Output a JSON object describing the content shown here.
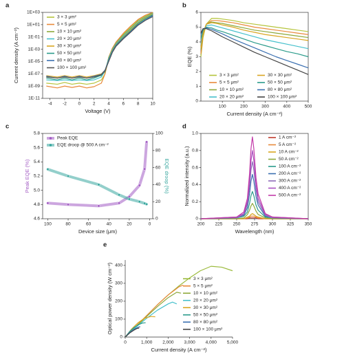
{
  "chart_data": [
    {
      "type": "line",
      "panel_label": "a",
      "xlabel": "Voltage (V)",
      "ylabel": "Current density (A cm⁻²)",
      "yscale": "log",
      "frame": true,
      "legend": "upper left",
      "x": [
        -4.5,
        -3,
        -2,
        -1,
        0,
        1,
        2,
        3,
        3.5,
        4,
        4.5,
        5,
        6,
        7,
        8,
        9,
        10
      ],
      "xlim": [
        -5,
        10
      ],
      "xticks": [
        -4,
        -2,
        0,
        2,
        4,
        6,
        8,
        10
      ],
      "ylim": [
        1e-11,
        1000
      ],
      "yticks": [
        {
          "value": 1e-11,
          "label": "1E-11"
        },
        {
          "value": 1e-09,
          "label": "1E-09"
        },
        {
          "value": 1e-07,
          "label": "1E-07"
        },
        {
          "value": 1e-05,
          "label": "1E-05"
        },
        {
          "value": 0.001,
          "label": "1E-03"
        },
        {
          "value": 0.1,
          "label": "1E-01"
        },
        {
          "value": 10,
          "label": "1E+01"
        },
        {
          "value": 1000,
          "label": "1E+03"
        }
      ],
      "series": [
        {
          "name": "3 × 3 μm²",
          "color": "#b5c43a",
          "values": [
            3e-09,
            2e-09,
            4e-09,
            2e-09,
            3e-09,
            2e-09,
            3e-09,
            1e-08,
            1e-07,
            3e-05,
            0.001,
            0.01,
            0.3,
            5,
            60,
            300,
            1000
          ]
        },
        {
          "name": "5 × 5 μm²",
          "color": "#e8893a",
          "values": [
            1e-09,
            5e-10,
            1e-09,
            6e-10,
            1e-09,
            5e-10,
            8e-10,
            3e-09,
            1e-07,
            5e-05,
            0.0015,
            0.015,
            0.4,
            6,
            70,
            350,
            1000
          ]
        },
        {
          "name": "10 × 10 μm²",
          "color": "#8da83a",
          "values": [
            3e-08,
            2e-08,
            3e-08,
            2e-08,
            3e-08,
            2e-08,
            3e-08,
            5e-08,
            2e-07,
            4e-05,
            0.001,
            0.01,
            0.2,
            3,
            40,
            200,
            800
          ]
        },
        {
          "name": "20 × 20 μm²",
          "color": "#45c0cc",
          "values": [
            1e-08,
            8e-09,
            1e-08,
            8e-09,
            1e-08,
            8e-09,
            1e-08,
            3e-08,
            3e-07,
            3e-05,
            0.0008,
            0.008,
            0.15,
            2,
            25,
            150,
            600
          ]
        },
        {
          "name": "30 × 30 μm²",
          "color": "#d9a520",
          "values": [
            5e-08,
            3e-08,
            5e-08,
            3e-08,
            5e-08,
            3e-08,
            5e-08,
            1e-07,
            4e-07,
            2e-05,
            0.0006,
            0.006,
            0.1,
            1.5,
            20,
            120,
            500
          ]
        },
        {
          "name": "50 × 50 μm²",
          "color": "#2a9b8a",
          "values": [
            2e-08,
            1e-08,
            2e-08,
            1e-08,
            2e-08,
            1e-08,
            2e-08,
            6e-08,
            3e-07,
            2e-05,
            0.0005,
            0.005,
            0.08,
            1,
            15,
            90,
            400
          ]
        },
        {
          "name": "80 × 80 μm²",
          "color": "#3a6fb0",
          "values": [
            4e-08,
            2e-08,
            4e-08,
            2e-08,
            4e-08,
            2e-08,
            4e-08,
            8e-08,
            4e-07,
            1.5e-05,
            0.0004,
            0.004,
            0.06,
            0.8,
            10,
            60,
            300
          ]
        },
        {
          "name": "100 × 100 μm²",
          "color": "#555555",
          "values": [
            3e-08,
            2e-08,
            3e-08,
            2e-08,
            3e-08,
            2e-08,
            3e-08,
            7e-08,
            3e-07,
            1e-05,
            0.0003,
            0.003,
            0.05,
            0.6,
            8,
            50,
            200
          ]
        }
      ]
    },
    {
      "type": "line",
      "panel_label": "b",
      "xlabel": "Current density (A cm⁻²)",
      "ylabel": "EQE (%)",
      "frame": true,
      "legend": "lower center",
      "x": [
        0,
        10,
        25,
        50,
        75,
        100,
        150,
        200,
        250,
        300,
        350,
        400,
        450,
        500
      ],
      "xlim": [
        0,
        500
      ],
      "xticks": [
        100,
        200,
        300,
        400,
        500
      ],
      "ylim": [
        0,
        6
      ],
      "yticks": [
        0,
        1,
        2,
        3,
        4,
        5,
        6
      ],
      "series": [
        {
          "name": "3 × 3 μm²",
          "color": "#b5c43a",
          "values": [
            3.0,
            4.3,
            5.2,
            5.6,
            5.6,
            5.55,
            5.45,
            5.3,
            5.2,
            5.1,
            5.0,
            4.9,
            4.8,
            4.7
          ]
        },
        {
          "name": "5 × 5 μm²",
          "color": "#e8893a",
          "values": [
            3.2,
            4.5,
            5.2,
            5.45,
            5.45,
            5.4,
            5.3,
            5.15,
            5.0,
            4.9,
            4.8,
            4.7,
            4.6,
            4.5
          ]
        },
        {
          "name": "10 × 10 μm²",
          "color": "#8da83a",
          "values": [
            3.5,
            4.6,
            5.2,
            5.35,
            5.3,
            5.25,
            5.1,
            4.95,
            4.8,
            4.7,
            4.6,
            4.5,
            4.4,
            4.3
          ]
        },
        {
          "name": "20 × 20 μm²",
          "color": "#45c0cc",
          "values": [
            3.8,
            4.7,
            5.1,
            5.15,
            5.05,
            4.95,
            4.75,
            4.55,
            4.35,
            4.15,
            4.0,
            3.85,
            3.7,
            3.55
          ]
        },
        {
          "name": "30 × 30 μm²",
          "color": "#d9a520",
          "values": [
            3.6,
            4.6,
            5.2,
            5.3,
            5.25,
            5.15,
            5.0,
            4.8,
            4.65,
            4.5,
            4.4,
            4.3,
            4.2,
            4.1
          ]
        },
        {
          "name": "50 × 50 μm²",
          "color": "#2a9b8a",
          "values": [
            4.2,
            4.8,
            5.0,
            4.95,
            4.8,
            4.7,
            4.45,
            4.2,
            3.95,
            3.75,
            3.55,
            3.35,
            3.2,
            3.0
          ]
        },
        {
          "name": "80 × 80 μm²",
          "color": "#3a6fb0",
          "values": [
            4.5,
            4.9,
            4.95,
            4.85,
            4.7,
            4.55,
            4.2,
            3.9,
            3.6,
            3.3,
            3.0,
            2.75,
            2.5,
            2.25
          ]
        },
        {
          "name": "100 × 100 μm²",
          "color": "#444444",
          "values": [
            4.6,
            4.9,
            4.9,
            4.75,
            4.55,
            4.35,
            4.0,
            3.65,
            3.3,
            3.0,
            2.7,
            2.4,
            2.1,
            1.8
          ]
        }
      ]
    },
    {
      "type": "line",
      "panel_label": "c",
      "xlabel": "Device size (μm)",
      "ylabel": "Peak EQE (%)",
      "y2label": "EQE droop (%)",
      "frame": true,
      "markers": true,
      "legend": "upper left",
      "x": [
        100,
        80,
        50,
        30,
        20,
        10,
        5,
        3
      ],
      "xlim": [
        105,
        -3
      ],
      "xticks": [
        100,
        80,
        60,
        40,
        20,
        0
      ],
      "ylim": [
        4.6,
        5.8
      ],
      "yticks": [
        4.6,
        4.8,
        {
          "value": 5,
          "label": "5.0"
        },
        5.2,
        5.4,
        5.6,
        5.8
      ],
      "y2lim": [
        0,
        100
      ],
      "y2ticks": [
        0,
        20,
        40,
        60,
        80,
        100
      ],
      "series": [
        {
          "name": "Peak EQE",
          "color": "#a35dc4",
          "values": [
            4.82,
            4.8,
            4.78,
            4.82,
            4.91,
            5.07,
            5.3,
            5.68
          ]
        },
        {
          "name": "EQE droop @ 500 A cm⁻²",
          "color": "#3aa8a0",
          "axis": "y2",
          "values": [
            58,
            50,
            40,
            28,
            23,
            20,
            18,
            17
          ]
        }
      ]
    },
    {
      "type": "line",
      "panel_label": "d",
      "xlabel": "Wavelength (nm)",
      "ylabel": "Normalized intensity (a.u.)",
      "frame": true,
      "legend": "upper right",
      "x": [
        200,
        250,
        260,
        265,
        268,
        270,
        272,
        274,
        277,
        280,
        290,
        300,
        350
      ],
      "xlim": [
        200,
        350
      ],
      "xticks": [
        200,
        225,
        250,
        275,
        300,
        325,
        350
      ],
      "ylim": [
        0,
        1
      ],
      "yticks": [
        0,
        0.2,
        0.4,
        0.6,
        0.8,
        {
          "value": 1,
          "label": "1.0"
        }
      ],
      "series": [
        {
          "name": "1 A cm⁻²",
          "color": "#c0392b",
          "values": [
            0,
            0,
            0,
            0,
            0.01,
            0.01,
            0.01,
            0.01,
            0.01,
            0,
            0,
            0,
            0
          ]
        },
        {
          "name": "5 A cm⁻²",
          "color": "#e8893a",
          "values": [
            0,
            0,
            0,
            0.01,
            0.02,
            0.03,
            0.03,
            0.03,
            0.02,
            0.01,
            0,
            0,
            0
          ]
        },
        {
          "name": "10 A cm⁻²",
          "color": "#d9a520",
          "values": [
            0,
            0,
            0,
            0.02,
            0.03,
            0.05,
            0.06,
            0.05,
            0.03,
            0.02,
            0,
            0,
            0
          ]
        },
        {
          "name": "50 A cm⁻²",
          "color": "#8da83a",
          "values": [
            0,
            0,
            0.01,
            0.05,
            0.1,
            0.15,
            0.18,
            0.15,
            0.09,
            0.05,
            0.01,
            0,
            0
          ]
        },
        {
          "name": "100 A cm⁻²",
          "color": "#2a9b8a",
          "values": [
            0,
            0.01,
            0.03,
            0.08,
            0.18,
            0.27,
            0.32,
            0.27,
            0.16,
            0.1,
            0.02,
            0.01,
            0
          ]
        },
        {
          "name": "200 A cm⁻²",
          "color": "#3a6fb0",
          "values": [
            0,
            0.01,
            0.04,
            0.13,
            0.29,
            0.44,
            0.52,
            0.44,
            0.26,
            0.16,
            0.03,
            0.01,
            0
          ]
        },
        {
          "name": "300 A cm⁻²",
          "color": "#8e6bb8",
          "values": [
            0,
            0.01,
            0.05,
            0.17,
            0.37,
            0.57,
            0.67,
            0.57,
            0.34,
            0.2,
            0.04,
            0.01,
            0
          ]
        },
        {
          "name": "400 A cm⁻²",
          "color": "#a84fc0",
          "values": [
            0,
            0.02,
            0.06,
            0.2,
            0.44,
            0.68,
            0.8,
            0.68,
            0.4,
            0.24,
            0.05,
            0.02,
            0
          ]
        },
        {
          "name": "500 A cm⁻²",
          "color": "#c23aa8",
          "values": [
            0,
            0.02,
            0.08,
            0.24,
            0.53,
            0.82,
            0.96,
            0.82,
            0.48,
            0.29,
            0.06,
            0.02,
            0
          ]
        }
      ]
    },
    {
      "type": "line",
      "panel_label": "e",
      "xlabel": "Current density (A cm⁻²)",
      "ylabel": "Optical power density (W cm⁻²)",
      "frame": false,
      "legend": "center right",
      "xlim": [
        0,
        5000
      ],
      "xticks": [
        0,
        {
          "value": 1000,
          "label": "1,000"
        },
        {
          "value": 2000,
          "label": "2,000"
        },
        {
          "value": 3000,
          "label": "3,000"
        },
        {
          "value": 4000,
          "label": "4,000"
        },
        {
          "value": 5000,
          "label": "5,000"
        }
      ],
      "ylim": [
        0,
        430
      ],
      "yticks": [
        0,
        100,
        200,
        300,
        400
      ],
      "series": [
        {
          "name": "3 × 3 μm²",
          "color": "#9bba3c",
          "x": [
            0,
            500,
            1000,
            1500,
            2000,
            2500,
            3000,
            3500,
            4000,
            4500,
            5000
          ],
          "values": [
            0,
            60,
            120,
            180,
            235,
            285,
            330,
            370,
            395,
            390,
            370
          ]
        },
        {
          "name": "5 × 5 μm²",
          "color": "#e8893a",
          "x": [
            0,
            500,
            1000,
            1500,
            2000,
            2500,
            2700
          ],
          "values": [
            0,
            60,
            120,
            180,
            235,
            280,
            290
          ]
        },
        {
          "name": "10 × 10 μm²",
          "color": "#8da83a",
          "x": [
            0,
            500,
            1000,
            1500,
            2000,
            2400,
            2600
          ],
          "values": [
            0,
            58,
            115,
            170,
            220,
            250,
            245
          ]
        },
        {
          "name": "20 × 20 μm²",
          "color": "#45c0cc",
          "x": [
            0,
            500,
            1000,
            1500,
            2000,
            2200,
            2400
          ],
          "values": [
            0,
            55,
            105,
            150,
            185,
            195,
            185
          ]
        },
        {
          "name": "30 × 30 μm²",
          "color": "#d9a520",
          "x": [
            0,
            300,
            600,
            900,
            1200,
            1400
          ],
          "values": [
            0,
            45,
            80,
            105,
            115,
            113
          ]
        },
        {
          "name": "50 × 50 μm²",
          "color": "#2a9b8a",
          "x": [
            0,
            200,
            400,
            600,
            800,
            950
          ],
          "values": [
            0,
            30,
            52,
            68,
            78,
            80
          ]
        },
        {
          "name": "80 × 80 μm²",
          "color": "#3a6fb0",
          "x": [
            0,
            200,
            400,
            600,
            700
          ],
          "values": [
            0,
            25,
            42,
            55,
            58
          ]
        },
        {
          "name": "100 × 100 μm²",
          "color": "#444444",
          "x": [
            0,
            200,
            400,
            550,
            650
          ],
          "values": [
            0,
            22,
            38,
            48,
            50
          ]
        }
      ]
    }
  ]
}
